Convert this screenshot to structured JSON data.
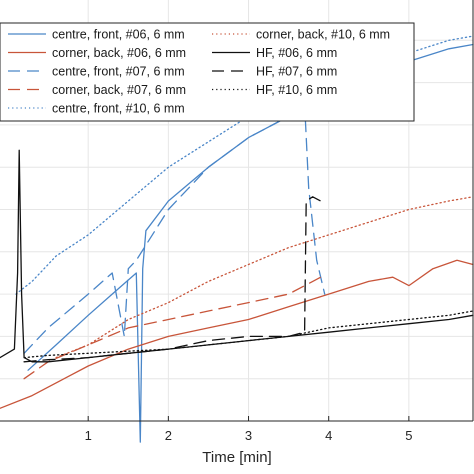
{
  "chart_data": {
    "type": "line",
    "title": "",
    "xlabel": "Time [min]",
    "ylabel": "",
    "xlim": [
      -0.1,
      5.8
    ],
    "ylim": [
      0,
      1
    ],
    "x_ticks": [
      1,
      2,
      3,
      4,
      5
    ],
    "x_tick_labels": [
      "1",
      "2",
      "3",
      "4",
      "5"
    ],
    "grid": true,
    "legend_position": "top-left",
    "legend_columns": 2,
    "series": [
      {
        "name": "centre, front, #06, 6 mm",
        "color": "#4a86c8",
        "dash": "solid",
        "x": [
          0.25,
          0.6,
          1.0,
          1.3,
          1.6,
          1.65,
          1.68,
          1.72,
          2.0,
          2.5,
          3.0,
          3.5,
          4.0,
          4.5,
          5.0,
          5.5,
          5.8
        ],
        "y": [
          0.12,
          0.18,
          0.25,
          0.3,
          0.35,
          -0.05,
          0.36,
          0.45,
          0.52,
          0.6,
          0.67,
          0.72,
          0.77,
          0.81,
          0.85,
          0.88,
          0.89
        ]
      },
      {
        "name": "corner, back, #06, 6 mm",
        "color": "#c8553a",
        "dash": "solid",
        "x": [
          -0.1,
          0.3,
          0.7,
          1.0,
          1.5,
          2.0,
          2.5,
          3.0,
          3.5,
          4.0,
          4.5,
          4.8,
          5.0,
          5.3,
          5.6,
          5.8
        ],
        "y": [
          0.03,
          0.06,
          0.1,
          0.13,
          0.17,
          0.2,
          0.22,
          0.24,
          0.27,
          0.3,
          0.33,
          0.34,
          0.32,
          0.36,
          0.38,
          0.37
        ]
      },
      {
        "name": "centre, front, #07, 6 mm",
        "color": "#4a86c8",
        "dash": "long",
        "x": [
          0.2,
          0.5,
          1.0,
          1.3,
          1.45,
          1.5,
          1.6,
          2.0,
          2.5,
          3.0,
          3.5,
          3.7,
          3.75,
          3.85,
          3.95
        ],
        "y": [
          0.16,
          0.22,
          0.3,
          0.35,
          0.2,
          0.36,
          0.38,
          0.5,
          0.6,
          0.67,
          0.72,
          0.75,
          0.55,
          0.38,
          0.3
        ]
      },
      {
        "name": "corner, back, #07, 6 mm",
        "color": "#c8553a",
        "dash": "long",
        "x": [
          0.2,
          0.5,
          1.0,
          1.5,
          2.0,
          2.5,
          3.0,
          3.5,
          3.8,
          3.9
        ],
        "y": [
          0.1,
          0.14,
          0.18,
          0.22,
          0.24,
          0.26,
          0.28,
          0.3,
          0.33,
          0.34
        ]
      },
      {
        "name": "centre, front, #10, 6 mm",
        "color": "#4a86c8",
        "dash": "dotted",
        "x": [
          0.1,
          0.3,
          0.6,
          1.0,
          1.5,
          2.0,
          2.5,
          3.0,
          3.5,
          4.0,
          4.5,
          5.0,
          5.5,
          5.8
        ],
        "y": [
          0.3,
          0.33,
          0.39,
          0.44,
          0.52,
          0.6,
          0.66,
          0.72,
          0.76,
          0.8,
          0.84,
          0.87,
          0.9,
          0.91
        ]
      },
      {
        "name": "corner, back, #10, 6 mm",
        "color": "#c8553a",
        "dash": "dotted",
        "x": [
          0.6,
          1.0,
          1.5,
          2.0,
          2.5,
          3.0,
          3.5,
          4.0,
          4.5,
          5.0,
          5.5,
          5.8
        ],
        "y": [
          0.15,
          0.18,
          0.24,
          0.28,
          0.33,
          0.37,
          0.41,
          0.44,
          0.47,
          0.5,
          0.52,
          0.53
        ]
      },
      {
        "name": "HF, #06, 6 mm",
        "color": "#111111",
        "dash": "solid",
        "x": [
          -0.1,
          0.08,
          0.12,
          0.14,
          0.17,
          0.2,
          0.3,
          0.5,
          1.0,
          1.5,
          2.0,
          2.5,
          3.0,
          3.5,
          4.0,
          4.5,
          5.0,
          5.5,
          5.8
        ],
        "y": [
          0.15,
          0.17,
          0.35,
          0.64,
          0.3,
          0.15,
          0.14,
          0.14,
          0.15,
          0.16,
          0.17,
          0.18,
          0.19,
          0.2,
          0.21,
          0.22,
          0.23,
          0.24,
          0.25
        ]
      },
      {
        "name": "HF, #07, 6 mm",
        "color": "#111111",
        "dash": "long",
        "x": [
          0.2,
          0.5,
          1.0,
          1.5,
          2.0,
          2.5,
          3.0,
          3.5,
          3.7,
          3.72,
          3.8,
          3.85,
          3.9
        ],
        "y": [
          0.14,
          0.145,
          0.15,
          0.16,
          0.17,
          0.19,
          0.2,
          0.2,
          0.21,
          0.52,
          0.53,
          0.525,
          0.52
        ]
      },
      {
        "name": "HF, #10, 6 mm",
        "color": "#111111",
        "dash": "dotted",
        "x": [
          0.2,
          0.5,
          1.0,
          1.5,
          2.0,
          2.5,
          3.0,
          3.5,
          4.0,
          4.5,
          5.0,
          5.5,
          5.8
        ],
        "y": [
          0.15,
          0.155,
          0.16,
          0.165,
          0.17,
          0.18,
          0.19,
          0.2,
          0.22,
          0.23,
          0.24,
          0.25,
          0.26
        ]
      }
    ]
  }
}
